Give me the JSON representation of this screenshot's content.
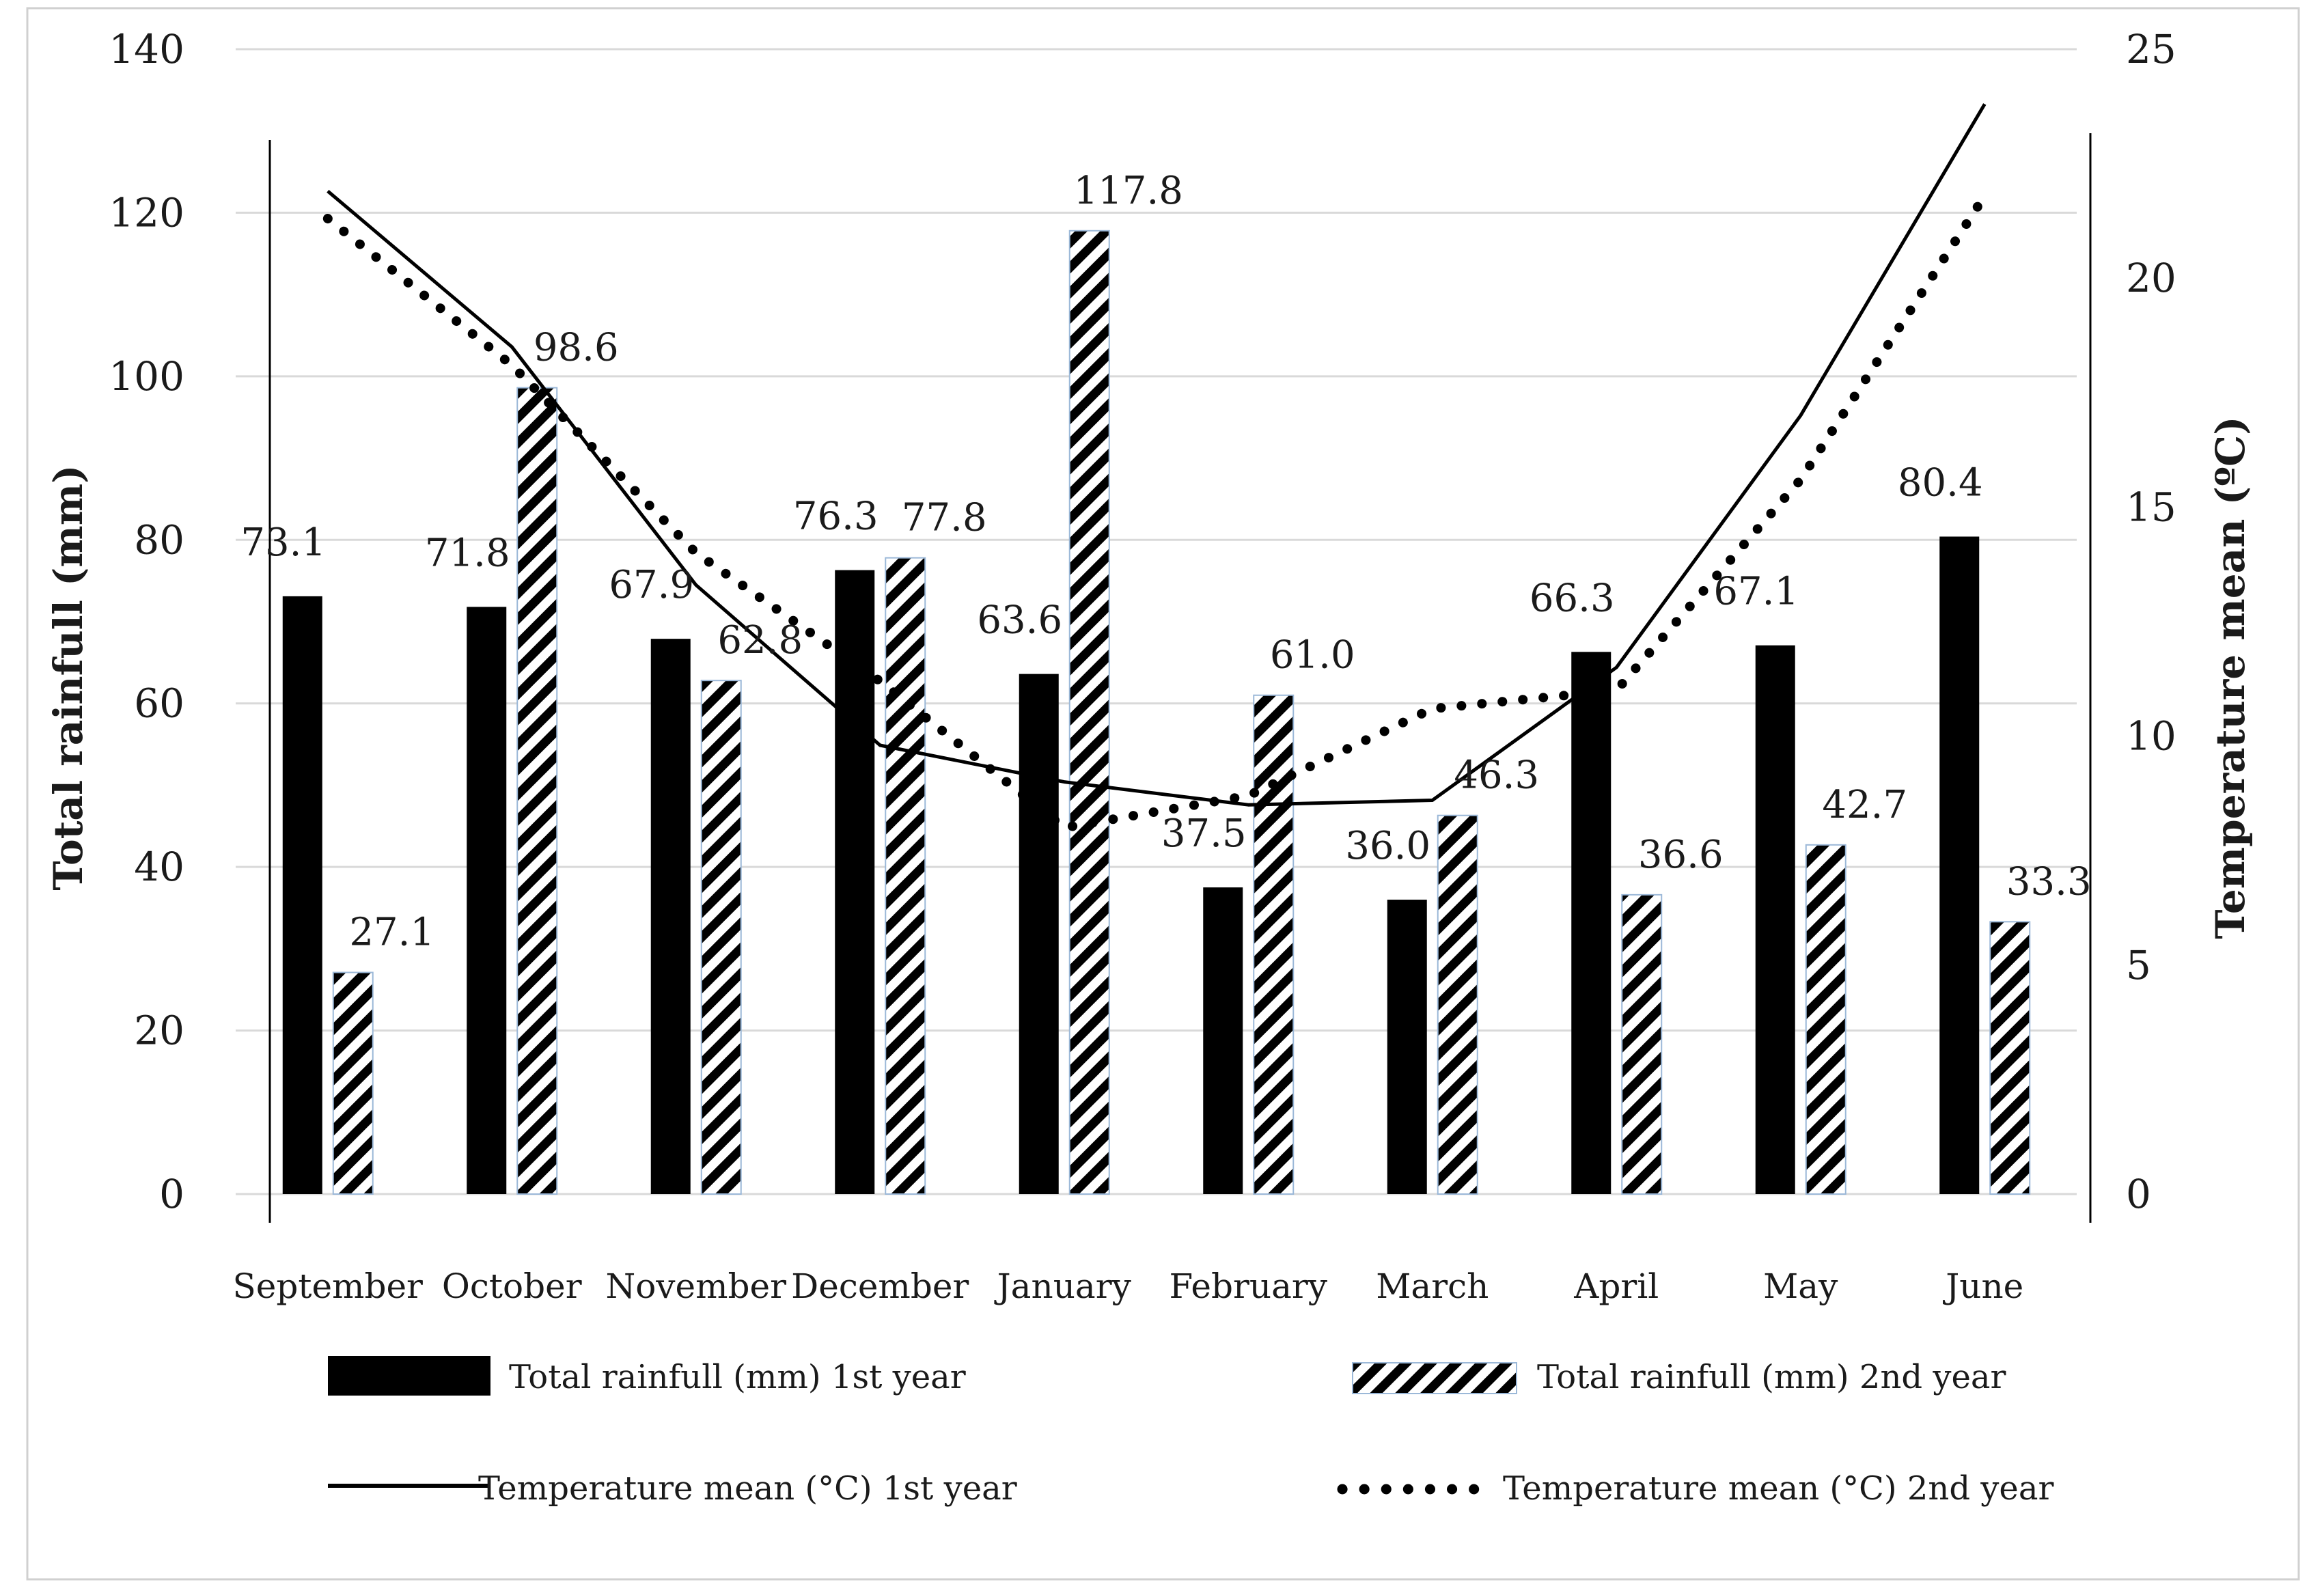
{
  "chart_data": {
    "type": "bar",
    "categories": [
      "September",
      "October",
      "November",
      "December",
      "January",
      "February",
      "March",
      "April",
      "May",
      "June"
    ],
    "series": [
      {
        "name": "Total rainfull (mm) 1st year",
        "kind": "bar",
        "axis": "left",
        "pattern": "solid",
        "color": "#000000",
        "values": [
          73.1,
          71.8,
          67.9,
          76.3,
          63.6,
          37.5,
          36.0,
          66.3,
          67.1,
          80.4
        ],
        "labels": [
          "73.1",
          "71.8",
          "67.9",
          "76.3",
          "63.6",
          "37.5",
          "36.0",
          "66.3",
          "67.1",
          "80.4"
        ]
      },
      {
        "name": "Total rainfull (mm) 2nd year",
        "kind": "bar",
        "axis": "left",
        "pattern": "hatched",
        "color": "#000000",
        "values": [
          27.1,
          98.6,
          62.8,
          77.8,
          117.8,
          61.0,
          46.3,
          36.6,
          42.7,
          33.3
        ],
        "labels": [
          "27.1",
          "98.6",
          "62.8",
          "77.8",
          "117.8",
          "61.0",
          "46.3",
          "36.6",
          "42.7",
          "33.3"
        ]
      },
      {
        "name": "Temperature mean (°C) 1st year",
        "kind": "line",
        "axis": "right",
        "style": "solid",
        "color": "#000000",
        "values": [
          21.9,
          18.5,
          13.3,
          9.8,
          9.0,
          8.5,
          8.6,
          11.5,
          17.0,
          23.8
        ]
      },
      {
        "name": "Temperature mean (°C) 2nd year",
        "kind": "line",
        "axis": "right",
        "style": "dotted",
        "color": "#000000",
        "values": [
          21.3,
          18.1,
          14.0,
          11.2,
          8.0,
          8.7,
          10.6,
          11.0,
          15.6,
          21.8
        ]
      }
    ],
    "left_axis": {
      "title": "Total rainfull (mm)",
      "ylim": [
        0,
        140
      ],
      "ticks": [
        "0",
        "20",
        "40",
        "60",
        "80",
        "100",
        "120",
        "140"
      ]
    },
    "right_axis": {
      "title": "Temperature mean (ºC)",
      "ylim": [
        0,
        25
      ],
      "ticks": [
        "0",
        "5",
        "10",
        "15",
        "20",
        "25"
      ]
    },
    "grid": true,
    "legend_position": "bottom"
  }
}
